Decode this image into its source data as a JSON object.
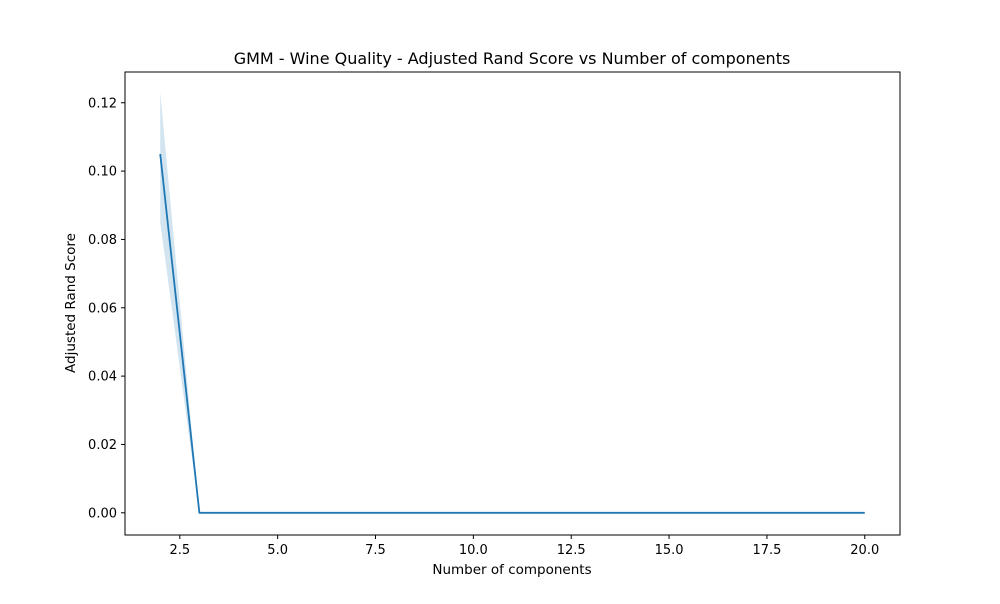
{
  "chart_data": {
    "type": "line",
    "title": "GMM - Wine Quality - Adjusted Rand Score vs Number of components",
    "xlabel": "Number of components",
    "ylabel": "Adjusted Rand Score",
    "xlim": [
      1.1,
      20.9
    ],
    "ylim": [
      -0.0065,
      0.129
    ],
    "xticks": [
      2.5,
      5.0,
      7.5,
      10.0,
      12.5,
      15.0,
      17.5,
      20.0
    ],
    "xtick_labels": [
      "2.5",
      "5.0",
      "7.5",
      "10.0",
      "12.5",
      "15.0",
      "17.5",
      "20.0"
    ],
    "yticks": [
      0.0,
      0.02,
      0.04,
      0.06,
      0.08,
      0.1,
      0.12
    ],
    "ytick_labels": [
      "0.00",
      "0.02",
      "0.04",
      "0.06",
      "0.08",
      "0.10",
      "0.12"
    ],
    "grid": false,
    "legend": "none",
    "series": [
      {
        "x": [
          2,
          3,
          4,
          5,
          6,
          7,
          8,
          9,
          10,
          11,
          12,
          13,
          14,
          15,
          16,
          17,
          18,
          19,
          20
        ],
        "values": [
          0.105,
          0,
          0,
          0,
          0,
          0,
          0,
          0,
          0,
          0,
          0,
          0,
          0,
          0,
          0,
          0,
          0,
          0,
          0
        ],
        "lower": [
          0.085,
          0,
          0,
          0,
          0,
          0,
          0,
          0,
          0,
          0,
          0,
          0,
          0,
          0,
          0,
          0,
          0,
          0,
          0
        ],
        "upper": [
          0.123,
          0,
          0,
          0,
          0,
          0,
          0,
          0,
          0,
          0,
          0,
          0,
          0,
          0,
          0,
          0,
          0,
          0,
          0
        ],
        "color": "#1f77b4",
        "band_color": "#1f77b4"
      }
    ]
  }
}
